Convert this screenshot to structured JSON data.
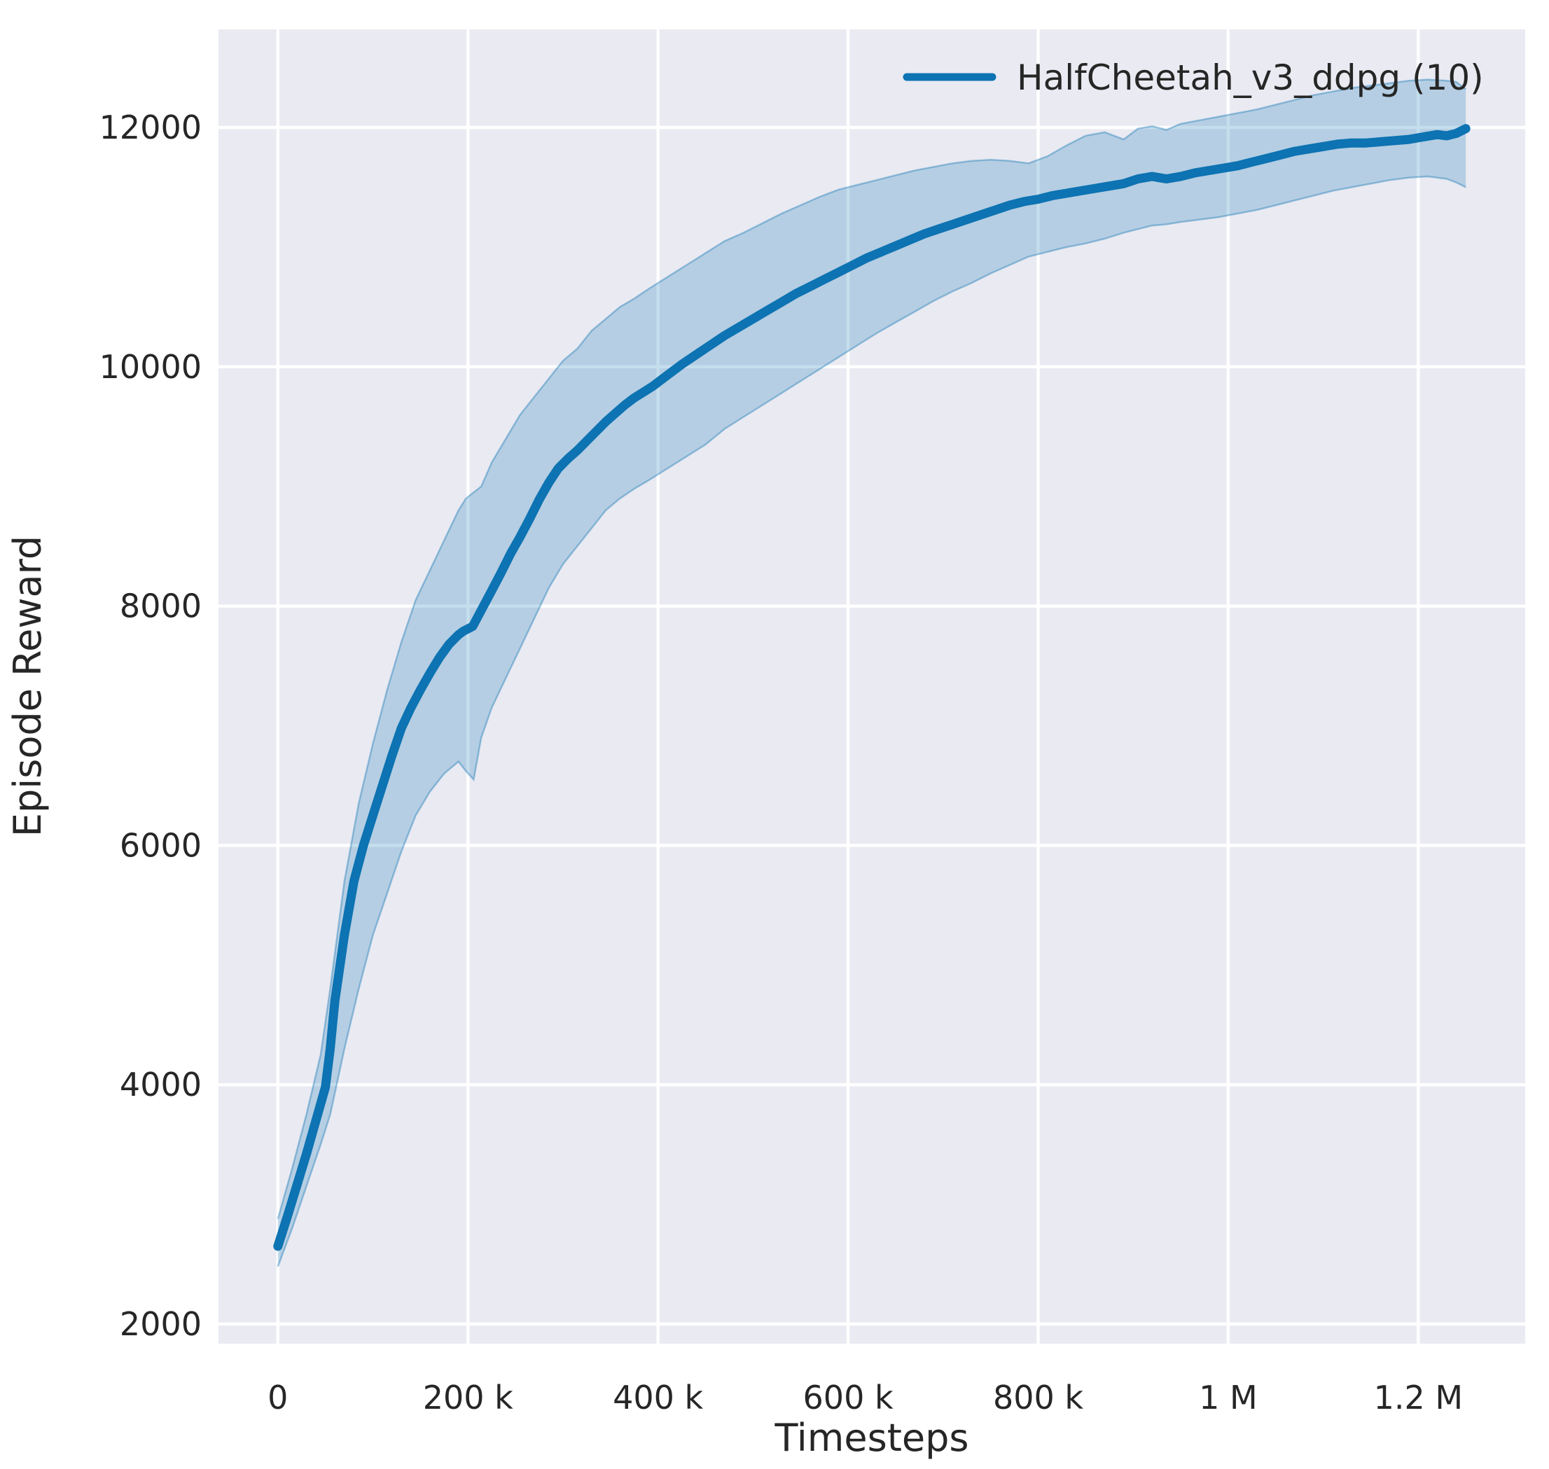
{
  "chart_data": {
    "type": "line",
    "title": "",
    "xlabel": "Timesteps",
    "ylabel": "Episode Reward",
    "legend": [
      {
        "label": "HalfCheetah_v3_ddpg (10)"
      }
    ],
    "legend_location": "upper right",
    "grid": true,
    "style": {
      "figure_background": "#ffffff",
      "axes_background": "#eaeaf2",
      "grid_color": "#ffffff",
      "line_color": "#0d73b2",
      "band_color": "#0d73b2",
      "band_opacity": 0.24,
      "band_edge_opacity": 0.38,
      "text_color": "#262626"
    },
    "x_unit_note": "x values in thousands of timesteps",
    "xlim_k": [
      -62.5,
      1312.5
    ],
    "ylim": [
      1836,
      12819
    ],
    "xticks": [
      {
        "value_k": 0,
        "label": "0"
      },
      {
        "value_k": 200,
        "label": "200 k"
      },
      {
        "value_k": 400,
        "label": "400 k"
      },
      {
        "value_k": 600,
        "label": "600 k"
      },
      {
        "value_k": 800,
        "label": "800 k"
      },
      {
        "value_k": 1000,
        "label": "1 M"
      },
      {
        "value_k": 1200,
        "label": "1.2 M"
      }
    ],
    "yticks": [
      {
        "value": 2000,
        "label": "2000"
      },
      {
        "value": 4000,
        "label": "4000"
      },
      {
        "value": 6000,
        "label": "6000"
      },
      {
        "value": 8000,
        "label": "8000"
      },
      {
        "value": 10000,
        "label": "10000"
      },
      {
        "value": 12000,
        "label": "12000"
      }
    ],
    "series": [
      {
        "name": "HalfCheetah_v3_ddpg (10)",
        "color": "#0d73b2",
        "x_k": [
          0,
          10,
          20,
          30,
          40,
          50,
          55,
          60,
          70,
          80,
          90,
          100,
          110,
          120,
          130,
          140,
          150,
          160,
          170,
          180,
          190,
          195,
          205,
          215,
          225,
          235,
          245,
          255,
          265,
          275,
          285,
          295,
          305,
          315,
          325,
          335,
          345,
          355,
          365,
          375,
          385,
          395,
          410,
          425,
          440,
          455,
          470,
          485,
          500,
          515,
          530,
          545,
          560,
          575,
          590,
          605,
          620,
          635,
          650,
          665,
          680,
          695,
          710,
          725,
          740,
          755,
          770,
          785,
          800,
          815,
          830,
          845,
          860,
          875,
          890,
          905,
          920,
          935,
          950,
          965,
          980,
          995,
          1010,
          1025,
          1040,
          1055,
          1070,
          1085,
          1100,
          1115,
          1130,
          1145,
          1160,
          1175,
          1190,
          1205,
          1220,
          1230,
          1240,
          1250
        ],
        "mean": [
          2650,
          2900,
          3160,
          3420,
          3700,
          3980,
          4300,
          4700,
          5250,
          5700,
          6000,
          6250,
          6500,
          6750,
          6980,
          7150,
          7300,
          7440,
          7570,
          7680,
          7760,
          7790,
          7830,
          7980,
          8130,
          8280,
          8440,
          8580,
          8730,
          8890,
          9030,
          9150,
          9230,
          9300,
          9380,
          9460,
          9540,
          9610,
          9680,
          9740,
          9790,
          9840,
          9930,
          10020,
          10100,
          10180,
          10260,
          10330,
          10400,
          10470,
          10540,
          10610,
          10670,
          10730,
          10790,
          10850,
          10910,
          10960,
          11010,
          11060,
          11110,
          11150,
          11190,
          11230,
          11270,
          11310,
          11350,
          11380,
          11400,
          11430,
          11450,
          11470,
          11490,
          11510,
          11530,
          11570,
          11590,
          11570,
          11590,
          11620,
          11640,
          11660,
          11680,
          11710,
          11740,
          11770,
          11800,
          11820,
          11840,
          11860,
          11870,
          11870,
          11880,
          11890,
          11900,
          11920,
          11940,
          11930,
          11950,
          11990
        ],
        "band": {
          "x_k": [
            0,
            15,
            30,
            45,
            55,
            70,
            85,
            100,
            115,
            130,
            145,
            160,
            175,
            190,
            198,
            206,
            214,
            225,
            240,
            255,
            270,
            285,
            300,
            315,
            330,
            345,
            360,
            375,
            390,
            410,
            430,
            450,
            470,
            490,
            510,
            530,
            550,
            570,
            590,
            610,
            630,
            650,
            670,
            690,
            710,
            730,
            750,
            770,
            790,
            810,
            830,
            850,
            870,
            890,
            905,
            920,
            935,
            950,
            970,
            990,
            1010,
            1030,
            1050,
            1070,
            1090,
            1110,
            1130,
            1150,
            1170,
            1190,
            1210,
            1230,
            1240,
            1250
          ],
          "lower": [
            2480,
            2800,
            3150,
            3500,
            3750,
            4300,
            4800,
            5250,
            5600,
            5950,
            6250,
            6450,
            6600,
            6700,
            6620,
            6550,
            6900,
            7150,
            7400,
            7650,
            7900,
            8150,
            8350,
            8500,
            8650,
            8800,
            8900,
            8980,
            9050,
            9150,
            9250,
            9350,
            9480,
            9580,
            9680,
            9780,
            9880,
            9980,
            10080,
            10180,
            10280,
            10370,
            10460,
            10550,
            10630,
            10700,
            10780,
            10850,
            10920,
            10960,
            11000,
            11030,
            11070,
            11120,
            11150,
            11180,
            11190,
            11210,
            11230,
            11250,
            11280,
            11310,
            11350,
            11390,
            11430,
            11470,
            11500,
            11530,
            11560,
            11580,
            11590,
            11570,
            11540,
            11500
          ],
          "upper": [
            2880,
            3300,
            3750,
            4250,
            4800,
            5700,
            6350,
            6850,
            7300,
            7700,
            8050,
            8300,
            8550,
            8800,
            8900,
            8950,
            9000,
            9200,
            9400,
            9600,
            9750,
            9900,
            10050,
            10150,
            10300,
            10400,
            10500,
            10570,
            10650,
            10750,
            10850,
            10950,
            11050,
            11120,
            11200,
            11280,
            11350,
            11420,
            11480,
            11520,
            11560,
            11600,
            11640,
            11670,
            11700,
            11720,
            11730,
            11720,
            11700,
            11760,
            11850,
            11930,
            11960,
            11900,
            11990,
            12010,
            11980,
            12030,
            12060,
            12090,
            12120,
            12150,
            12190,
            12230,
            12270,
            12300,
            12330,
            12350,
            12370,
            12390,
            12400,
            12390,
            12380,
            12320
          ]
        }
      }
    ]
  }
}
